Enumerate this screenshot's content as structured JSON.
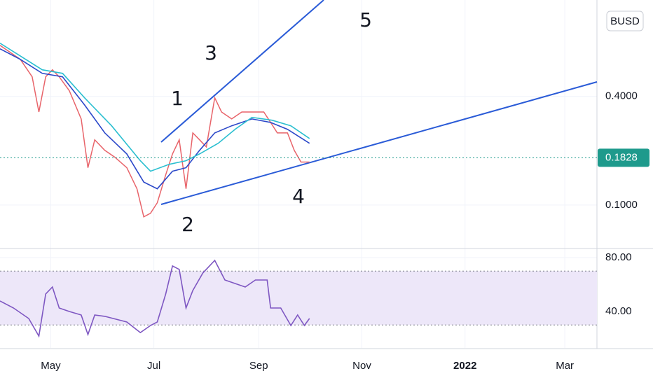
{
  "chart_data": [
    {
      "type": "line",
      "log_scale": true,
      "grid": true,
      "xlim": [
        91,
        444
      ],
      "ylim": [
        0.0574,
        1.37
      ],
      "yticks": [
        {
          "value": 0.1,
          "label": "0.1000"
        },
        {
          "value": 0.4,
          "label": "0.4000"
        }
      ],
      "currency_button": "BUSD",
      "last_price": 0.1828,
      "last_price_color": "#1e9a8c",
      "annotations": [
        "1",
        "2",
        "3",
        "4",
        "5"
      ],
      "series": [
        {
          "color": "#e8646a",
          "x": [
            91,
            97,
            103,
            110,
            114,
            118,
            122,
            126,
            132,
            139,
            143,
            147,
            153,
            159,
            166,
            172,
            176,
            180,
            184,
            189,
            193,
            197,
            201,
            205,
            209,
            213,
            218,
            222,
            228,
            234,
            240,
            247,
            251,
            255,
            261,
            265,
            269,
            274
          ],
          "values": [
            0.768,
            0.702,
            0.642,
            0.514,
            0.328,
            0.514,
            0.562,
            0.514,
            0.43,
            0.3,
            0.161,
            0.23,
            0.201,
            0.184,
            0.161,
            0.123,
            0.086,
            0.09,
            0.103,
            0.147,
            0.192,
            0.23,
            0.123,
            0.251,
            0.23,
            0.21,
            0.393,
            0.328,
            0.3,
            0.328,
            0.328,
            0.328,
            0.287,
            0.251,
            0.251,
            0.201,
            0.173,
            0.173
          ]
        },
        {
          "color": "#2b48c9",
          "x": [
            91,
            103,
            116,
            128,
            141,
            153,
            166,
            176,
            184,
            193,
            201,
            209,
            218,
            228,
            240,
            251,
            261,
            274
          ],
          "values": [
            0.735,
            0.642,
            0.537,
            0.514,
            0.359,
            0.251,
            0.192,
            0.134,
            0.123,
            0.154,
            0.161,
            0.201,
            0.251,
            0.275,
            0.3,
            0.287,
            0.263,
            0.22
          ]
        },
        {
          "color": "#2bbfd0",
          "x": [
            91,
            116,
            128,
            141,
            157,
            174,
            180,
            191,
            201,
            209,
            220,
            230,
            240,
            252,
            263,
            274
          ],
          "values": [
            0.789,
            0.562,
            0.537,
            0.393,
            0.275,
            0.176,
            0.154,
            0.168,
            0.176,
            0.192,
            0.22,
            0.263,
            0.306,
            0.295,
            0.275,
            0.234
          ]
        }
      ]
    },
    {
      "type": "line",
      "grid": true,
      "xlim": [
        91,
        444
      ],
      "ylim": [
        13,
        86.75
      ],
      "yticks": [
        {
          "value": 40,
          "label": "40.00"
        },
        {
          "value": 80,
          "label": "80.00"
        }
      ],
      "band": [
        30,
        70
      ],
      "band_color": "#ede7f9",
      "xticks": [
        {
          "value": 121,
          "label": "May"
        },
        {
          "value": 182,
          "label": "Jul"
        },
        {
          "value": 244,
          "label": "Sep"
        },
        {
          "value": 305,
          "label": "Nov"
        },
        {
          "value": 366,
          "label": "2022"
        },
        {
          "value": 425,
          "label": "Mar"
        }
      ],
      "series": [
        {
          "color": "#7e57c2",
          "x": [
            91,
            99,
            108,
            114,
            118,
            122,
            126,
            132,
            139,
            143,
            147,
            153,
            166,
            174,
            180,
            184,
            189,
            193,
            197,
            201,
            205,
            211,
            218,
            224,
            230,
            236,
            242,
            249,
            251,
            257,
            263,
            267,
            271,
            274
          ],
          "values": [
            47.8,
            42.6,
            34.8,
            21.8,
            53,
            58.2,
            42.6,
            40,
            37.4,
            22.9,
            37.4,
            36.4,
            32.2,
            24.4,
            29.6,
            32.2,
            53,
            73.8,
            71.2,
            42.6,
            55.6,
            68.6,
            77.9,
            63.4,
            60.8,
            58.2,
            63.4,
            63.4,
            42.6,
            42.6,
            29.6,
            37.4,
            29.6,
            34.8
          ]
        }
      ]
    }
  ]
}
